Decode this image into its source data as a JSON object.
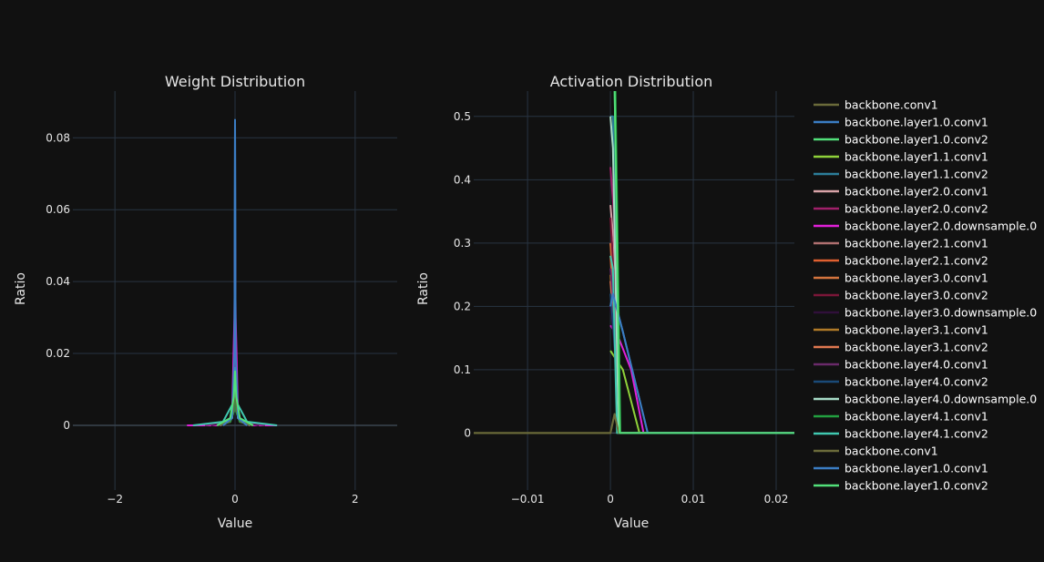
{
  "chart_data": [
    {
      "type": "line",
      "title": "Weight Distribution",
      "xlabel": "Value",
      "ylabel": "Ratio",
      "xlim": [
        -2.7,
        2.7
      ],
      "ylim": [
        -0.018,
        0.093
      ],
      "xticks": [
        -2,
        0,
        2
      ],
      "xtick_labels": [
        "−2",
        "0",
        "2"
      ],
      "yticks": [
        0,
        0.02,
        0.04,
        0.06,
        0.08
      ],
      "ytick_labels": [
        "0",
        "0.02",
        "0.04",
        "0.06",
        "0.08"
      ],
      "grid": true,
      "series": [
        {
          "name": "backbone.conv1",
          "color": "#6b6b3a",
          "x": [
            -0.3,
            -0.1,
            -0.03,
            0,
            0.03,
            0.1,
            0.3
          ],
          "y": [
            0,
            0.001,
            0.004,
            0.012,
            0.004,
            0.001,
            0
          ]
        },
        {
          "name": "backbone.layer1.0.conv1",
          "color": "#3b7dc4",
          "x": [
            -0.2,
            -0.05,
            -0.01,
            0,
            0.01,
            0.05,
            0.2
          ],
          "y": [
            0,
            0.002,
            0.02,
            0.085,
            0.02,
            0.002,
            0
          ]
        },
        {
          "name": "backbone.layer1.0.conv2",
          "color": "#52e07a",
          "x": [
            -0.3,
            -0.08,
            -0.02,
            0,
            0.02,
            0.08,
            0.3
          ],
          "y": [
            0,
            0.002,
            0.008,
            0.015,
            0.008,
            0.002,
            0
          ]
        },
        {
          "name": "backbone.layer1.1.conv1",
          "color": "#8fd13a",
          "x": [
            -0.3,
            -0.08,
            -0.02,
            0,
            0.02,
            0.08,
            0.3
          ],
          "y": [
            0,
            0.001,
            0.006,
            0.012,
            0.006,
            0.001,
            0
          ]
        },
        {
          "name": "backbone.layer1.1.conv2",
          "color": "#2c7e9a",
          "x": [
            -0.3,
            -0.05,
            -0.01,
            0,
            0.01,
            0.05,
            0.3
          ],
          "y": [
            0,
            0.002,
            0.01,
            0.03,
            0.01,
            0.002,
            0
          ]
        },
        {
          "name": "backbone.layer2.0.conv1",
          "color": "#d9a3a8",
          "x": [
            -0.25,
            -0.06,
            -0.015,
            0,
            0.015,
            0.06,
            0.25
          ],
          "y": [
            0,
            0.002,
            0.008,
            0.02,
            0.008,
            0.002,
            0
          ]
        },
        {
          "name": "backbone.layer2.0.conv2",
          "color": "#a0206a",
          "x": [
            -0.4,
            -0.1,
            -0.02,
            0,
            0.02,
            0.1,
            0.4
          ],
          "y": [
            0,
            0.001,
            0.006,
            0.024,
            0.006,
            0.001,
            0
          ]
        },
        {
          "name": "backbone.layer2.0.downsample.0",
          "color": "#e020d8",
          "x": [
            -0.8,
            -0.3,
            -0.05,
            -0.01,
            0,
            0.01,
            0.05,
            0.3,
            0.7
          ],
          "y": [
            0,
            0,
            0.002,
            0.03,
            0.053,
            0.03,
            0.002,
            0,
            0
          ]
        },
        {
          "name": "backbone.layer2.1.conv1",
          "color": "#b07070",
          "x": [
            -0.3,
            -0.08,
            -0.02,
            0,
            0.02,
            0.08,
            0.3
          ],
          "y": [
            0,
            0.001,
            0.005,
            0.012,
            0.005,
            0.001,
            0
          ]
        },
        {
          "name": "backbone.layer2.1.conv2",
          "color": "#e06030",
          "x": [
            -0.3,
            -0.08,
            -0.02,
            0,
            0.02,
            0.08,
            0.3
          ],
          "y": [
            0,
            0.001,
            0.004,
            0.01,
            0.004,
            0.001,
            0
          ]
        },
        {
          "name": "backbone.layer3.0.conv1",
          "color": "#d4743e",
          "x": [
            -0.3,
            -0.08,
            -0.02,
            0,
            0.02,
            0.08,
            0.3
          ],
          "y": [
            0,
            0.001,
            0.004,
            0.011,
            0.004,
            0.001,
            0
          ]
        },
        {
          "name": "backbone.layer3.0.conv2",
          "color": "#7a1638",
          "x": [
            -0.3,
            -0.08,
            -0.02,
            0,
            0.02,
            0.08,
            0.3
          ],
          "y": [
            0,
            0.001,
            0.005,
            0.014,
            0.005,
            0.001,
            0
          ]
        },
        {
          "name": "backbone.layer3.0.downsample.0",
          "color": "#30103a",
          "x": [
            -0.4,
            -0.1,
            -0.02,
            0,
            0.02,
            0.1,
            0.4
          ],
          "y": [
            0,
            0.001,
            0.004,
            0.01,
            0.004,
            0.001,
            0
          ]
        },
        {
          "name": "backbone.layer3.1.conv1",
          "color": "#b07a28",
          "x": [
            -0.3,
            -0.08,
            -0.02,
            0,
            0.02,
            0.08,
            0.3
          ],
          "y": [
            0,
            0.001,
            0.004,
            0.012,
            0.004,
            0.001,
            0
          ]
        },
        {
          "name": "backbone.layer3.1.conv2",
          "color": "#e07850",
          "x": [
            -0.3,
            -0.08,
            -0.02,
            0,
            0.02,
            0.08,
            0.3
          ],
          "y": [
            0,
            0.001,
            0.004,
            0.011,
            0.004,
            0.001,
            0
          ]
        },
        {
          "name": "backbone.layer4.0.conv1",
          "color": "#6a2a6a",
          "x": [
            -0.5,
            -0.1,
            -0.02,
            0,
            0.02,
            0.1,
            0.5
          ],
          "y": [
            0,
            0.001,
            0.004,
            0.013,
            0.004,
            0.001,
            0
          ]
        },
        {
          "name": "backbone.layer4.0.conv2",
          "color": "#1a4a78",
          "x": [
            -0.3,
            -0.08,
            -0.02,
            0,
            0.02,
            0.08,
            0.3
          ],
          "y": [
            0,
            0.001,
            0.004,
            0.01,
            0.004,
            0.001,
            0
          ]
        },
        {
          "name": "backbone.layer4.0.downsample.0",
          "color": "#a8dcc8",
          "x": [
            -0.3,
            -0.05,
            -0.01,
            0,
            0.01,
            0.05,
            0.3
          ],
          "y": [
            0,
            0.002,
            0.008,
            0.016,
            0.008,
            0.002,
            0
          ]
        },
        {
          "name": "backbone.layer4.1.conv1",
          "color": "#22a040",
          "x": [
            -0.3,
            -0.08,
            -0.02,
            0,
            0.02,
            0.08,
            0.3
          ],
          "y": [
            0,
            0.001,
            0.004,
            0.012,
            0.004,
            0.001,
            0
          ]
        },
        {
          "name": "backbone.layer4.1.conv2",
          "color": "#40c8b0",
          "x": [
            -0.7,
            -0.2,
            -0.04,
            0,
            0.04,
            0.2,
            0.7
          ],
          "y": [
            0,
            0.001,
            0.006,
            0.016,
            0.006,
            0.001,
            0
          ]
        },
        {
          "name": "backbone.conv1",
          "color": "#6b6b3a",
          "x": [
            -0.3,
            -0.1,
            -0.03,
            0,
            0.03,
            0.1,
            0.3
          ],
          "y": [
            0,
            0.001,
            0.004,
            0.012,
            0.004,
            0.001,
            0
          ]
        },
        {
          "name": "backbone.layer1.0.conv1",
          "color": "#3b7dc4",
          "x": [
            -0.2,
            -0.05,
            -0.01,
            0,
            0.01,
            0.05,
            0.2
          ],
          "y": [
            0,
            0.002,
            0.02,
            0.085,
            0.02,
            0.002,
            0
          ]
        },
        {
          "name": "backbone.layer1.0.conv2",
          "color": "#52e07a",
          "x": [
            -0.3,
            -0.08,
            -0.02,
            0,
            0.02,
            0.08,
            0.3
          ],
          "y": [
            0,
            0.002,
            0.008,
            0.015,
            0.008,
            0.002,
            0
          ]
        }
      ]
    },
    {
      "type": "line",
      "title": "Activation Distribution",
      "xlabel": "Value",
      "ylabel": "Ratio",
      "xlim": [
        -0.0165,
        0.0222
      ],
      "ylim": [
        -0.09,
        0.54
      ],
      "xticks": [
        -0.01,
        0,
        0.01,
        0.02
      ],
      "xtick_labels": [
        "−0.01",
        "0",
        "0.01",
        "0.02"
      ],
      "yticks": [
        0,
        0.1,
        0.2,
        0.3,
        0.4,
        0.5
      ],
      "ytick_labels": [
        "0",
        "0.1",
        "0.2",
        "0.3",
        "0.4",
        "0.5"
      ],
      "grid": true,
      "series": [
        {
          "name": "backbone.conv1",
          "color": "#6b6b3a",
          "x": [
            -0.0165,
            0,
            0.0005,
            0.001,
            0.0222
          ],
          "y": [
            0,
            0,
            0.03,
            0,
            0
          ]
        },
        {
          "name": "backbone.layer1.0.conv1",
          "color": "#3b7dc4",
          "x": [
            0,
            0.0003,
            0.0015,
            0.0045,
            0.0222
          ],
          "y": [
            0.2,
            0.22,
            0.16,
            0,
            0
          ]
        },
        {
          "name": "backbone.layer1.0.conv2",
          "color": "#52e07a",
          "x": [
            0,
            0.0005,
            0.0011,
            0.0222
          ],
          "y": [
            0.55,
            0.55,
            0,
            0
          ]
        },
        {
          "name": "backbone.layer1.1.conv1",
          "color": "#8fd13a",
          "x": [
            0,
            0.0015,
            0.0035,
            0.0222
          ],
          "y": [
            0.13,
            0.1,
            0,
            0
          ]
        },
        {
          "name": "backbone.layer1.1.conv2",
          "color": "#2c7e9a",
          "x": [
            0,
            0.0003,
            0.001,
            0.0222
          ],
          "y": [
            0.5,
            0.5,
            0,
            0
          ]
        },
        {
          "name": "backbone.layer2.0.conv1",
          "color": "#d9a3a8",
          "x": [
            0,
            0.0004,
            0.001,
            0.0222
          ],
          "y": [
            0.36,
            0.3,
            0,
            0
          ]
        },
        {
          "name": "backbone.layer2.0.conv2",
          "color": "#a0206a",
          "x": [
            0,
            0.0004,
            0.0012,
            0.0222
          ],
          "y": [
            0.42,
            0.35,
            0,
            0
          ]
        },
        {
          "name": "backbone.layer2.0.downsample.0",
          "color": "#e020d8",
          "x": [
            0,
            0.001,
            0.0025,
            0.004,
            0.0222
          ],
          "y": [
            0.17,
            0.15,
            0.1,
            0,
            0
          ]
        },
        {
          "name": "backbone.layer2.1.conv1",
          "color": "#b07070",
          "x": [
            0,
            0.0004,
            0.0011,
            0.0222
          ],
          "y": [
            0.3,
            0.25,
            0,
            0
          ]
        },
        {
          "name": "backbone.layer2.1.conv2",
          "color": "#e06030",
          "x": [
            0,
            0.0004,
            0.0011,
            0.0222
          ],
          "y": [
            0.28,
            0.2,
            0,
            0
          ]
        },
        {
          "name": "backbone.layer3.0.conv1",
          "color": "#d4743e",
          "x": [
            0,
            0.0004,
            0.0011,
            0.0222
          ],
          "y": [
            0.3,
            0.22,
            0,
            0
          ]
        },
        {
          "name": "backbone.layer3.0.conv2",
          "color": "#7a1638",
          "x": [
            0,
            0.0004,
            0.0012,
            0.0222
          ],
          "y": [
            0.34,
            0.25,
            0,
            0
          ]
        },
        {
          "name": "backbone.layer3.0.downsample.0",
          "color": "#30103a",
          "x": [
            0,
            0.0004,
            0.0011,
            0.0222
          ],
          "y": [
            0.2,
            0.15,
            0,
            0
          ]
        },
        {
          "name": "backbone.layer3.1.conv1",
          "color": "#b07a28",
          "x": [
            0,
            0.0004,
            0.0011,
            0.0222
          ],
          "y": [
            0.25,
            0.18,
            0,
            0
          ]
        },
        {
          "name": "backbone.layer3.1.conv2",
          "color": "#e07850",
          "x": [
            0,
            0.0004,
            0.0011,
            0.0222
          ],
          "y": [
            0.24,
            0.18,
            0,
            0
          ]
        },
        {
          "name": "backbone.layer4.0.conv1",
          "color": "#6a2a6a",
          "x": [
            0,
            0.0004,
            0.0011,
            0.0222
          ],
          "y": [
            0.26,
            0.2,
            0,
            0
          ]
        },
        {
          "name": "backbone.layer4.0.conv2",
          "color": "#1a4a78",
          "x": [
            0,
            0.0004,
            0.0011,
            0.0222
          ],
          "y": [
            0.22,
            0.16,
            0,
            0
          ]
        },
        {
          "name": "backbone.layer4.0.downsample.0",
          "color": "#a8dcc8",
          "x": [
            0,
            0.0003,
            0.001,
            0.0222
          ],
          "y": [
            0.5,
            0.45,
            0,
            0
          ]
        },
        {
          "name": "backbone.layer4.1.conv1",
          "color": "#22a040",
          "x": [
            0.0003,
            0.0006,
            0.0012,
            0.0222
          ],
          "y": [
            0.55,
            0.55,
            0,
            0
          ]
        },
        {
          "name": "backbone.layer4.1.conv2",
          "color": "#40c8b0",
          "x": [
            0,
            0.0003,
            0.0008,
            0.0222
          ],
          "y": [
            0.28,
            0.26,
            0,
            0
          ]
        },
        {
          "name": "backbone.conv1",
          "color": "#6b6b3a",
          "x": [
            -0.0165,
            0,
            0.0005,
            0.001,
            0.0222
          ],
          "y": [
            0,
            0,
            0.03,
            0,
            0
          ]
        },
        {
          "name": "backbone.layer1.0.conv1",
          "color": "#3b7dc4",
          "x": [
            0,
            0.0003,
            0.0015,
            0.0045,
            0.0222
          ],
          "y": [
            0.2,
            0.22,
            0.16,
            0,
            0
          ]
        },
        {
          "name": "backbone.layer1.0.conv2",
          "color": "#52e07a",
          "x": [
            0,
            0.0005,
            0.0011,
            0.0222
          ],
          "y": [
            0.55,
            0.55,
            0,
            0
          ]
        }
      ]
    }
  ],
  "legend": {
    "placement": "right",
    "items": [
      {
        "label": "backbone.conv1",
        "color": "#6b6b3a"
      },
      {
        "label": "backbone.layer1.0.conv1",
        "color": "#3b7dc4"
      },
      {
        "label": "backbone.layer1.0.conv2",
        "color": "#52e07a"
      },
      {
        "label": "backbone.layer1.1.conv1",
        "color": "#8fd13a"
      },
      {
        "label": "backbone.layer1.1.conv2",
        "color": "#2c7e9a"
      },
      {
        "label": "backbone.layer2.0.conv1",
        "color": "#d9a3a8"
      },
      {
        "label": "backbone.layer2.0.conv2",
        "color": "#a0206a"
      },
      {
        "label": "backbone.layer2.0.downsample.0",
        "color": "#e020d8"
      },
      {
        "label": "backbone.layer2.1.conv1",
        "color": "#b07070"
      },
      {
        "label": "backbone.layer2.1.conv2",
        "color": "#e06030"
      },
      {
        "label": "backbone.layer3.0.conv1",
        "color": "#d4743e"
      },
      {
        "label": "backbone.layer3.0.conv2",
        "color": "#7a1638"
      },
      {
        "label": "backbone.layer3.0.downsample.0",
        "color": "#30103a"
      },
      {
        "label": "backbone.layer3.1.conv1",
        "color": "#b07a28"
      },
      {
        "label": "backbone.layer3.1.conv2",
        "color": "#e07850"
      },
      {
        "label": "backbone.layer4.0.conv1",
        "color": "#6a2a6a"
      },
      {
        "label": "backbone.layer4.0.conv2",
        "color": "#1a4a78"
      },
      {
        "label": "backbone.layer4.0.downsample.0",
        "color": "#a8dcc8"
      },
      {
        "label": "backbone.layer4.1.conv1",
        "color": "#22a040"
      },
      {
        "label": "backbone.layer4.1.conv2",
        "color": "#40c8b0"
      },
      {
        "label": "backbone.conv1",
        "color": "#6b6b3a"
      },
      {
        "label": "backbone.layer1.0.conv1",
        "color": "#3b7dc4"
      },
      {
        "label": "backbone.layer1.0.conv2",
        "color": "#52e07a"
      }
    ]
  }
}
